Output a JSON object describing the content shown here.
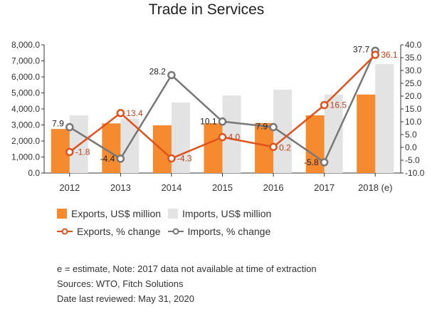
{
  "chart_data": {
    "type": "bar+line",
    "title": "Trade in Services",
    "categories": [
      "2012",
      "2013",
      "2014",
      "2015",
      "2016",
      "2017",
      "2018 (e)"
    ],
    "bar_series": [
      {
        "name": "Exports, US$ million",
        "color": "#f58a2f",
        "values": [
          2750,
          3100,
          2980,
          3100,
          3120,
          3600,
          4900
        ]
      },
      {
        "name": "Imports, US$ million",
        "color": "#e3e3e3",
        "values": [
          3600,
          3400,
          4400,
          4850,
          5200,
          4900,
          6800
        ]
      }
    ],
    "line_series": [
      {
        "name": "Exports, % change",
        "color": "#e0521c",
        "values": [
          -1.8,
          13.4,
          -4.3,
          4.0,
          0.2,
          16.5,
          36.1
        ]
      },
      {
        "name": "Imports, % change",
        "color": "#777777",
        "values": [
          7.9,
          -4.4,
          28.2,
          10.1,
          7.9,
          -5.8,
          37.7
        ]
      }
    ],
    "y_left": {
      "min": 0,
      "max": 8000,
      "step": 1000,
      "ticks": [
        "0.0",
        "1,000.0",
        "2,000.0",
        "3,000.0",
        "4,000.0",
        "5,000.0",
        "6,000.0",
        "7,000.0",
        "8,000.0"
      ]
    },
    "y_right": {
      "min": -10,
      "max": 40,
      "step": 5,
      "ticks": [
        "-10.0",
        "-5.0",
        "0.0",
        "5.0",
        "10.0",
        "15.0",
        "20.0",
        "25.0",
        "30.0",
        "35.0",
        "40.0"
      ]
    },
    "export_labels": [
      "-1.8",
      "13.4",
      "-4.3",
      "4.0",
      "0.2",
      "16.5",
      "36.1"
    ],
    "import_labels": [
      "7.9",
      "-4.4",
      "28.2",
      "10.1",
      "7.9",
      "-5.8",
      "37.7"
    ],
    "legend_position": "bottom"
  },
  "notes": {
    "line1": "e = estimate, Note: 2017 data not available at time of extraction",
    "line2": "Sources: WTO, Fitch Solutions",
    "line3": "Date last reviewed: May 31, 2020"
  }
}
